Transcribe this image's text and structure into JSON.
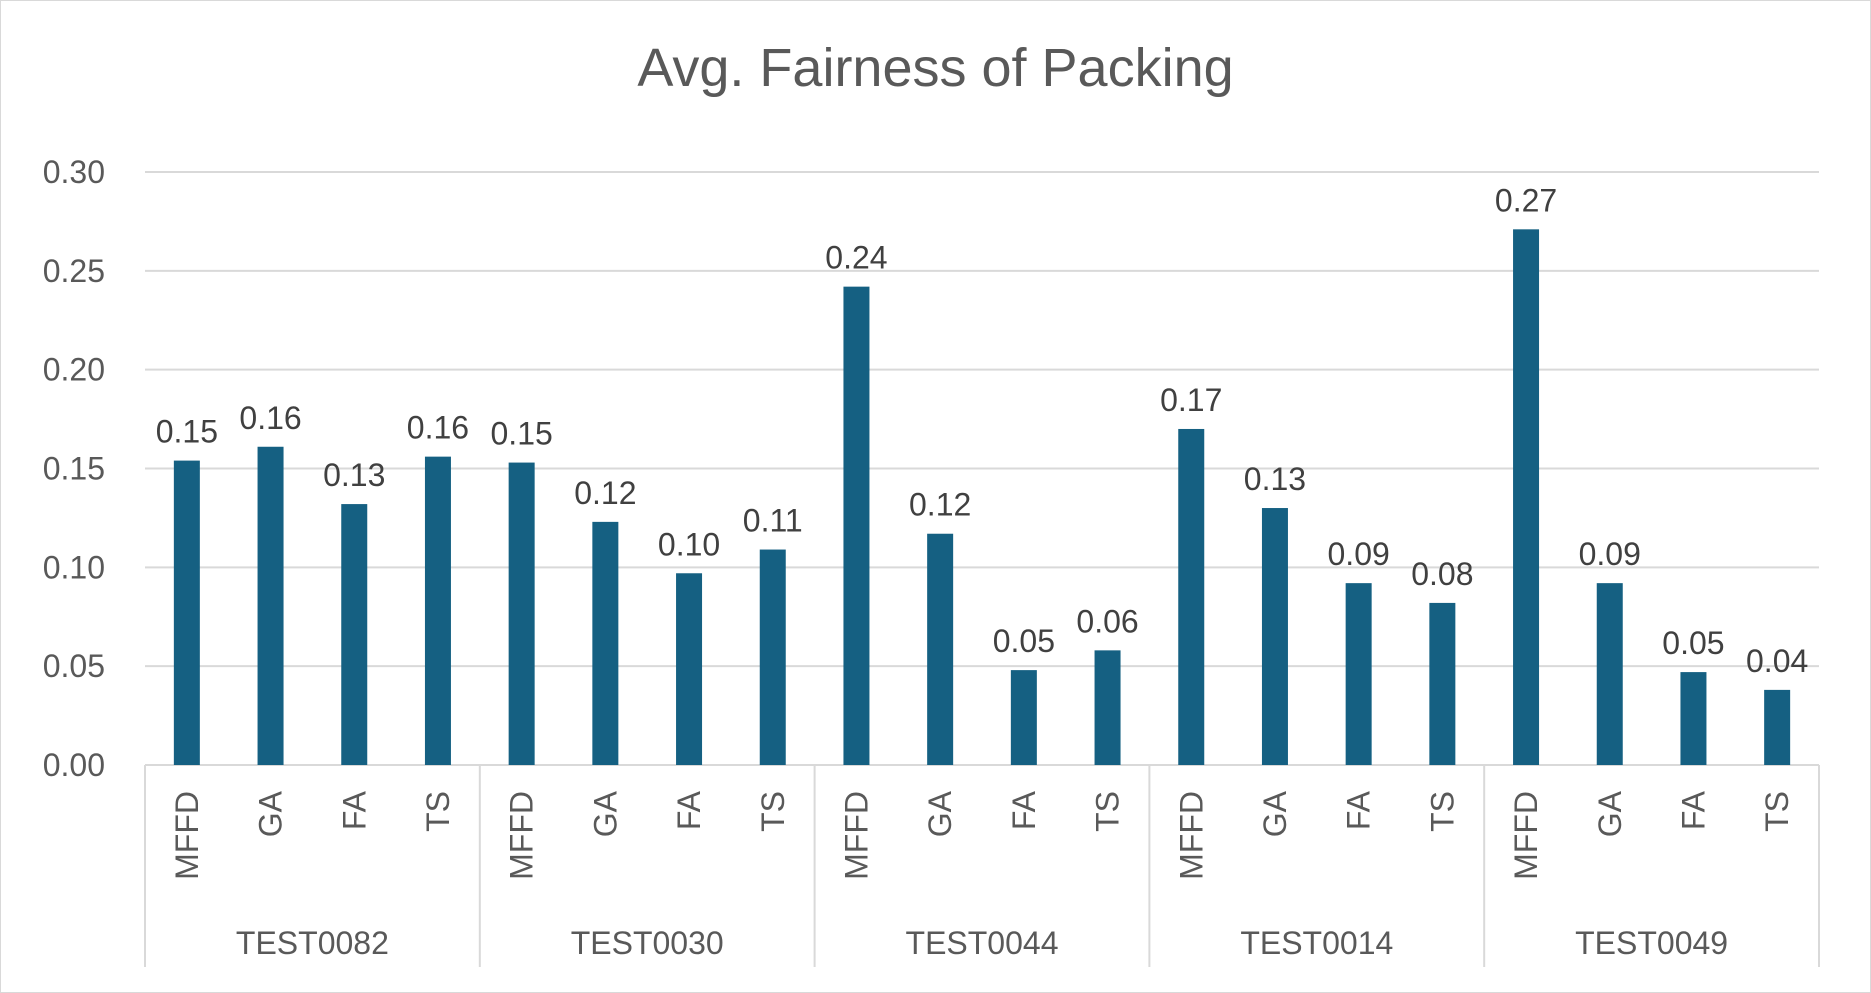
{
  "chart_data": {
    "type": "bar",
    "title": "Avg. Fairness of Packing",
    "xlabel": "",
    "ylabel": "",
    "ylim": [
      0,
      0.3
    ],
    "yticks": [
      "0.00",
      "0.05",
      "0.10",
      "0.15",
      "0.20",
      "0.25",
      "0.30"
    ],
    "grid": true,
    "legend": "none",
    "bar_color": "#156082",
    "groups": [
      {
        "name": "TEST0082",
        "categories": [
          "MFFD",
          "GA",
          "FA",
          "TS"
        ],
        "values": [
          0.154,
          0.161,
          0.132,
          0.156
        ],
        "labels": [
          "0.15",
          "0.16",
          "0.13",
          "0.16"
        ]
      },
      {
        "name": "TEST0030",
        "categories": [
          "MFFD",
          "GA",
          "FA",
          "TS"
        ],
        "values": [
          0.153,
          0.123,
          0.097,
          0.109
        ],
        "labels": [
          "0.15",
          "0.12",
          "0.10",
          "0.11"
        ]
      },
      {
        "name": "TEST0044",
        "categories": [
          "MFFD",
          "GA",
          "FA",
          "TS"
        ],
        "values": [
          0.242,
          0.117,
          0.048,
          0.058
        ],
        "labels": [
          "0.24",
          "0.12",
          "0.05",
          "0.06"
        ]
      },
      {
        "name": "TEST0014",
        "categories": [
          "MFFD",
          "GA",
          "FA",
          "TS"
        ],
        "values": [
          0.17,
          0.13,
          0.092,
          0.082
        ],
        "labels": [
          "0.17",
          "0.13",
          "0.09",
          "0.08"
        ]
      },
      {
        "name": "TEST0049",
        "categories": [
          "MFFD",
          "GA",
          "FA",
          "TS"
        ],
        "values": [
          0.271,
          0.092,
          0.047,
          0.038
        ],
        "labels": [
          "0.27",
          "0.09",
          "0.05",
          "0.04"
        ]
      }
    ]
  }
}
